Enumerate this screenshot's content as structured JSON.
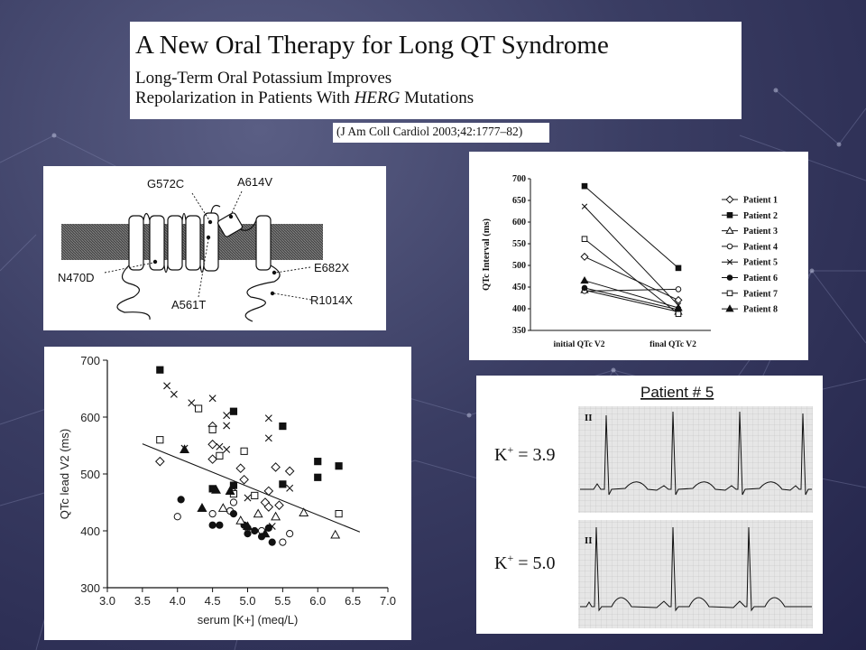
{
  "slide": {
    "title": "A New Oral Therapy for Long QT Syndrome",
    "subtitle_line1": "Long-Term Oral Potassium Improves",
    "subtitle_line2_prefix": "Repolarization in Patients With ",
    "subtitle_line2_italic": "HERG",
    "subtitle_line2_suffix": " Mutations",
    "citation": "(J Am Coll Cardiol 2003;42:1777–82)",
    "colors": {
      "background": "#3a3d63",
      "panel": "#ffffff",
      "ink": "#111111"
    }
  },
  "channel_diagram": {
    "mutations": [
      "G572C",
      "A614V",
      "N470D",
      "E682X",
      "A561T",
      "R1014X"
    ]
  },
  "chart_data": [
    {
      "type": "line",
      "ylabel": "QTc Interval (ms)",
      "categories": [
        "initial QTc V2",
        "final QTc V2"
      ],
      "ylim": [
        350,
        700
      ],
      "yticks": [
        350,
        400,
        450,
        500,
        550,
        600,
        650,
        700
      ],
      "legend_position": "right",
      "series": [
        {
          "name": "Patient 1",
          "marker": "diamond-open",
          "values": [
            520,
            420
          ]
        },
        {
          "name": "Patient 2",
          "marker": "square-filled",
          "values": [
            683,
            494
          ]
        },
        {
          "name": "Patient 3",
          "marker": "triangle-open",
          "values": [
            443,
            393
          ]
        },
        {
          "name": "Patient 4",
          "marker": "circle-open",
          "values": [
            441,
            445
          ]
        },
        {
          "name": "Patient 5",
          "marker": "x",
          "values": [
            636,
            408
          ]
        },
        {
          "name": "Patient 6",
          "marker": "circle-filled",
          "values": [
            448,
            398
          ]
        },
        {
          "name": "Patient 7",
          "marker": "square-open",
          "values": [
            561,
            388
          ]
        },
        {
          "name": "Patient 8",
          "marker": "triangle-filled",
          "values": [
            465,
            402
          ]
        }
      ]
    },
    {
      "type": "scatter",
      "xlabel": "serum [K+] (meq/L)",
      "ylabel": "QTc lead V2 (ms)",
      "xlim": [
        3.0,
        7.0
      ],
      "ylim": [
        300,
        700
      ],
      "xticks": [
        3.0,
        3.5,
        4.0,
        4.5,
        5.0,
        5.5,
        6.0,
        6.5,
        7.0
      ],
      "yticks": [
        300,
        400,
        500,
        600,
        700
      ],
      "regression": [
        [
          3.5,
          553
        ],
        [
          6.6,
          398
        ]
      ],
      "points": [
        {
          "m": "square-filled",
          "x": 3.75,
          "y": 683
        },
        {
          "m": "square-filled",
          "x": 4.8,
          "y": 610
        },
        {
          "m": "square-filled",
          "x": 5.5,
          "y": 584
        },
        {
          "m": "square-filled",
          "x": 6.0,
          "y": 522
        },
        {
          "m": "square-filled",
          "x": 6.0,
          "y": 494
        },
        {
          "m": "square-filled",
          "x": 6.3,
          "y": 514
        },
        {
          "m": "square-filled",
          "x": 4.5,
          "y": 474
        },
        {
          "m": "square-filled",
          "x": 4.8,
          "y": 480
        },
        {
          "m": "square-filled",
          "x": 5.5,
          "y": 482
        },
        {
          "m": "x",
          "x": 3.85,
          "y": 655
        },
        {
          "m": "x",
          "x": 3.95,
          "y": 640
        },
        {
          "m": "x",
          "x": 4.2,
          "y": 625
        },
        {
          "m": "x",
          "x": 4.5,
          "y": 633
        },
        {
          "m": "x",
          "x": 4.7,
          "y": 603
        },
        {
          "m": "x",
          "x": 4.7,
          "y": 585
        },
        {
          "m": "x",
          "x": 5.3,
          "y": 598
        },
        {
          "m": "x",
          "x": 5.3,
          "y": 563
        },
        {
          "m": "x",
          "x": 4.6,
          "y": 548
        },
        {
          "m": "x",
          "x": 4.7,
          "y": 543
        },
        {
          "m": "x",
          "x": 4.1,
          "y": 545
        },
        {
          "m": "x",
          "x": 5.0,
          "y": 458
        },
        {
          "m": "x",
          "x": 5.6,
          "y": 475
        },
        {
          "m": "x",
          "x": 5.35,
          "y": 408
        },
        {
          "m": "x",
          "x": 4.8,
          "y": 475
        },
        {
          "m": "diamond-open",
          "x": 3.75,
          "y": 522
        },
        {
          "m": "diamond-open",
          "x": 4.5,
          "y": 552
        },
        {
          "m": "diamond-open",
          "x": 4.5,
          "y": 584
        },
        {
          "m": "diamond-open",
          "x": 4.5,
          "y": 526
        },
        {
          "m": "diamond-open",
          "x": 4.9,
          "y": 510
        },
        {
          "m": "diamond-open",
          "x": 5.4,
          "y": 512
        },
        {
          "m": "diamond-open",
          "x": 5.6,
          "y": 505
        },
        {
          "m": "diamond-open",
          "x": 5.3,
          "y": 470
        },
        {
          "m": "diamond-open",
          "x": 5.25,
          "y": 450
        },
        {
          "m": "diamond-open",
          "x": 5.45,
          "y": 445
        },
        {
          "m": "diamond-open",
          "x": 5.3,
          "y": 442
        },
        {
          "m": "diamond-open",
          "x": 4.95,
          "y": 490
        },
        {
          "m": "square-open",
          "x": 3.75,
          "y": 560
        },
        {
          "m": "square-open",
          "x": 4.3,
          "y": 615
        },
        {
          "m": "square-open",
          "x": 4.5,
          "y": 578
        },
        {
          "m": "square-open",
          "x": 4.6,
          "y": 532
        },
        {
          "m": "square-open",
          "x": 4.95,
          "y": 540
        },
        {
          "m": "square-open",
          "x": 5.1,
          "y": 462
        },
        {
          "m": "square-open",
          "x": 6.3,
          "y": 430
        },
        {
          "m": "square-open",
          "x": 4.8,
          "y": 465
        },
        {
          "m": "circle-open",
          "x": 4.0,
          "y": 425
        },
        {
          "m": "circle-open",
          "x": 4.5,
          "y": 430
        },
        {
          "m": "circle-open",
          "x": 4.75,
          "y": 435
        },
        {
          "m": "circle-open",
          "x": 5.0,
          "y": 405
        },
        {
          "m": "circle-open",
          "x": 5.2,
          "y": 400
        },
        {
          "m": "circle-open",
          "x": 5.5,
          "y": 380
        },
        {
          "m": "circle-open",
          "x": 5.6,
          "y": 395
        },
        {
          "m": "circle-open",
          "x": 4.8,
          "y": 450
        },
        {
          "m": "circle-filled",
          "x": 4.05,
          "y": 455
        },
        {
          "m": "circle-filled",
          "x": 4.5,
          "y": 410
        },
        {
          "m": "circle-filled",
          "x": 4.6,
          "y": 410
        },
        {
          "m": "circle-filled",
          "x": 4.95,
          "y": 410
        },
        {
          "m": "circle-filled",
          "x": 5.1,
          "y": 400
        },
        {
          "m": "circle-filled",
          "x": 5.2,
          "y": 390
        },
        {
          "m": "circle-filled",
          "x": 5.3,
          "y": 405
        },
        {
          "m": "circle-filled",
          "x": 5.35,
          "y": 380
        },
        {
          "m": "circle-filled",
          "x": 4.8,
          "y": 430
        },
        {
          "m": "circle-filled",
          "x": 5.0,
          "y": 395
        },
        {
          "m": "triangle-open",
          "x": 4.35,
          "y": 440
        },
        {
          "m": "triangle-open",
          "x": 4.65,
          "y": 440
        },
        {
          "m": "triangle-open",
          "x": 5.15,
          "y": 430
        },
        {
          "m": "triangle-open",
          "x": 5.4,
          "y": 425
        },
        {
          "m": "triangle-open",
          "x": 5.8,
          "y": 432
        },
        {
          "m": "triangle-open",
          "x": 6.25,
          "y": 393
        },
        {
          "m": "triangle-open",
          "x": 4.9,
          "y": 418
        },
        {
          "m": "triangle-filled",
          "x": 4.1,
          "y": 543
        },
        {
          "m": "triangle-filled",
          "x": 4.35,
          "y": 440
        },
        {
          "m": "triangle-filled",
          "x": 4.55,
          "y": 472
        },
        {
          "m": "triangle-filled",
          "x": 4.75,
          "y": 470
        },
        {
          "m": "triangle-filled",
          "x": 5.0,
          "y": 408
        },
        {
          "m": "triangle-filled",
          "x": 5.25,
          "y": 395
        }
      ]
    }
  ],
  "ecg": {
    "title": "Patient # 5",
    "strips": [
      {
        "label_prefix": "K",
        "label_sup": "+",
        "label_value": " = 3.9",
        "lead": "II"
      },
      {
        "label_prefix": "K",
        "label_sup": "+",
        "label_value": " = 5.0",
        "lead": "II"
      }
    ]
  }
}
